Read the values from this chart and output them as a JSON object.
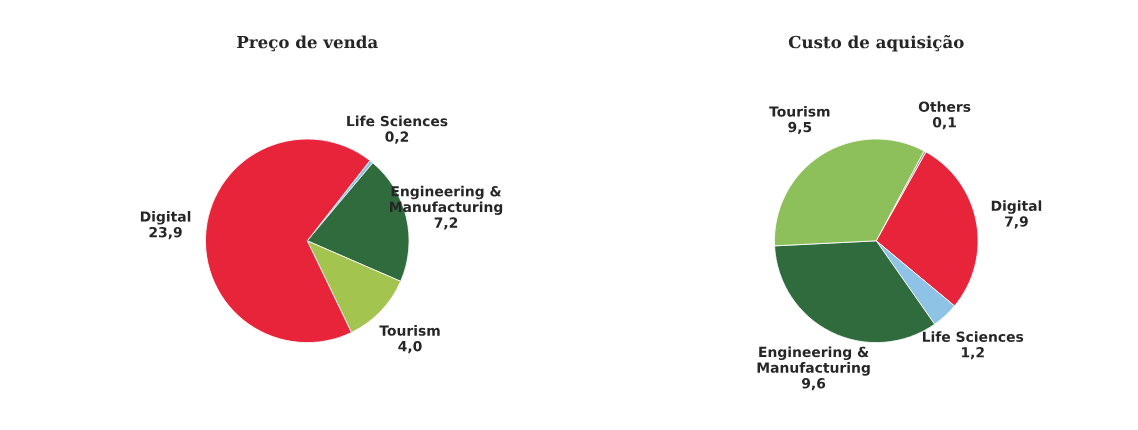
{
  "chart_data": [
    {
      "type": "pie",
      "title": "Preço de venda",
      "categories": [
        "Life Sciences",
        "Engineering &\nManufacturing",
        "Tourism",
        "Digital"
      ],
      "values": [
        0.2,
        7.2,
        4.0,
        23.9
      ],
      "value_labels": [
        "0,2",
        "7,2",
        "4,0",
        "23,9"
      ],
      "colors": [
        "#8fc3e6",
        "#2f6b3c",
        "#a4c450",
        "#e8243a"
      ],
      "legend": false
    },
    {
      "type": "pie",
      "title": "Custo de aquisição",
      "categories": [
        "Others",
        "Digital",
        "Life Sciences",
        "Engineering &\nManufacturing",
        "Tourism"
      ],
      "values": [
        0.1,
        7.9,
        1.2,
        9.6,
        9.5
      ],
      "value_labels": [
        "0,1",
        "7,9",
        "1,2",
        "9,6",
        "9,5"
      ],
      "colors": [
        "#9a9a9a",
        "#e8243a",
        "#8fc3e6",
        "#2f6b3c",
        "#8dbf5a"
      ],
      "legend": false
    }
  ]
}
